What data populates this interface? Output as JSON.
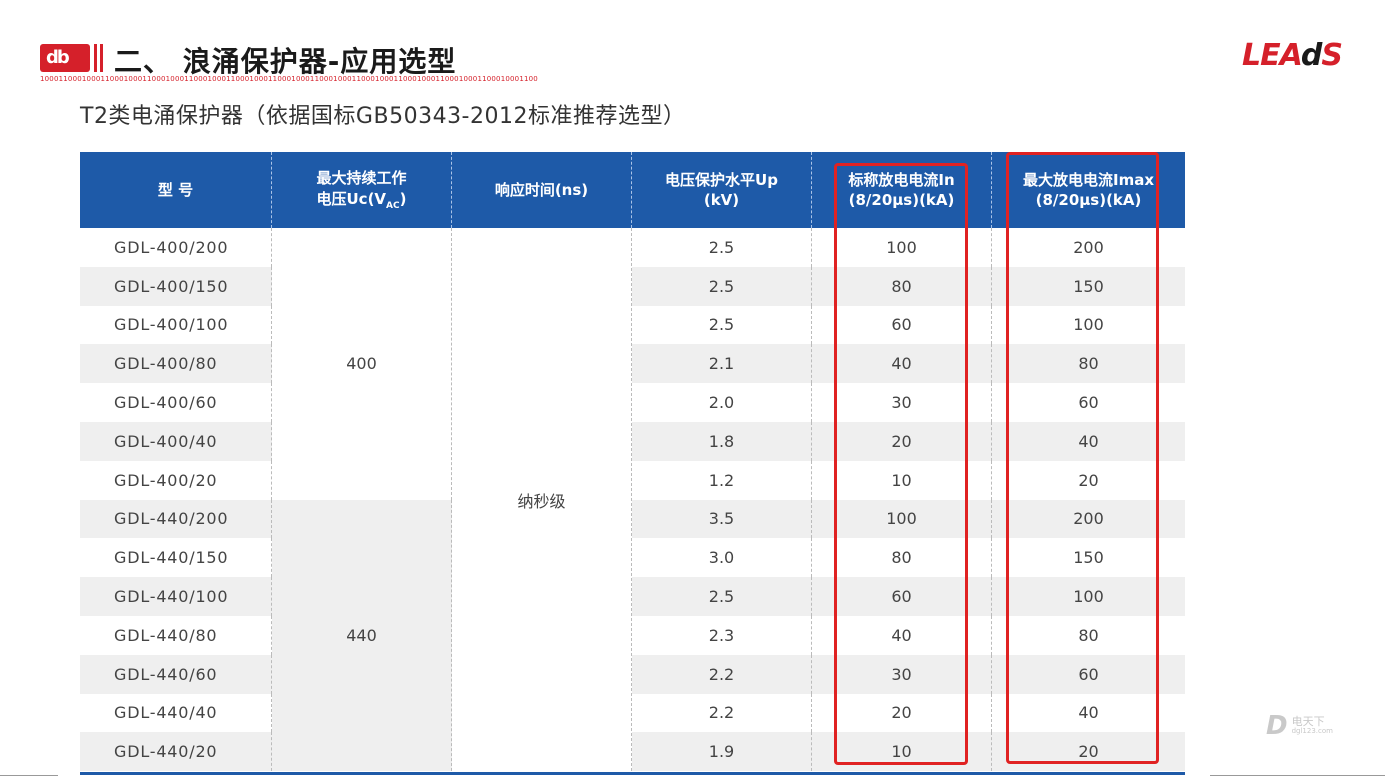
{
  "header": {
    "logo_text": "db",
    "title": "二、 浪涌保护器-应用选型",
    "binary_strip": "10001100010001100010001100010001100010001100010001100010001100010001100010001100010001100010001100010001100",
    "brand_part1": "LEA",
    "brand_part2": "d",
    "brand_part3": "S"
  },
  "subtitle": "T2类电涌保护器（依据国标GB50343-2012标准推荐选型）",
  "table": {
    "headers": {
      "model": "型 号",
      "uc_line1": "最大持续工作",
      "uc_line2_prefix": "电压Uc(V",
      "uc_line2_sub": "AC",
      "uc_line2_suffix": ")",
      "response": "响应时间(ns)",
      "up_line1": "电压保护水平Up",
      "up_line2": "(kV)",
      "in_line1": "标称放电电流In",
      "in_line2": "(8/20μs)(kA)",
      "imax_line1": "最大放电电流Imax",
      "imax_line2": "(8/20μs)(kA)"
    },
    "uc_group1": "400",
    "uc_group2": "440",
    "response_value": "纳秒级",
    "rows": [
      {
        "model": "GDL-400/200",
        "up": "2.5",
        "in": "100",
        "imax": "200"
      },
      {
        "model": "GDL-400/150",
        "up": "2.5",
        "in": "80",
        "imax": "150"
      },
      {
        "model": "GDL-400/100",
        "up": "2.5",
        "in": "60",
        "imax": "100"
      },
      {
        "model": "GDL-400/80",
        "up": "2.1",
        "in": "40",
        "imax": "80"
      },
      {
        "model": "GDL-400/60",
        "up": "2.0",
        "in": "30",
        "imax": "60"
      },
      {
        "model": "GDL-400/40",
        "up": "1.8",
        "in": "20",
        "imax": "40"
      },
      {
        "model": "GDL-400/20",
        "up": "1.2",
        "in": "10",
        "imax": "20"
      },
      {
        "model": "GDL-440/200",
        "up": "3.5",
        "in": "100",
        "imax": "200"
      },
      {
        "model": "GDL-440/150",
        "up": "3.0",
        "in": "80",
        "imax": "150"
      },
      {
        "model": "GDL-440/100",
        "up": "2.5",
        "in": "60",
        "imax": "100"
      },
      {
        "model": "GDL-440/80",
        "up": "2.3",
        "in": "40",
        "imax": "80"
      },
      {
        "model": "GDL-440/60",
        "up": "2.2",
        "in": "30",
        "imax": "60"
      },
      {
        "model": "GDL-440/40",
        "up": "2.2",
        "in": "20",
        "imax": "40"
      },
      {
        "model": "GDL-440/20",
        "up": "1.9",
        "in": "10",
        "imax": "20"
      }
    ]
  },
  "watermark": {
    "name": "电天下",
    "site": "dgl123.com"
  },
  "colors": {
    "header_blue": "#1e5aa8",
    "accent_red": "#d5202a",
    "highlight_red": "#e02222",
    "stripe_gray": "#efefef"
  }
}
